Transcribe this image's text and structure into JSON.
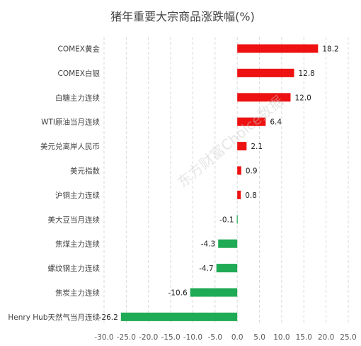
{
  "chart_data": {
    "type": "bar",
    "orientation": "horizontal",
    "title": "猪年重要大宗商品涨跌幅(%)",
    "categories": [
      "COMEX黄金",
      "COMEX白银",
      "白糖主力连续",
      "WTI原油当月连续",
      "美元兑离岸人民币",
      "美元指数",
      "沪铜主力连续",
      "美大豆当月连续",
      "焦煤主力连续",
      "螺纹钢主力连续",
      "焦炭主力连续",
      "Henry Hub天然气当月连续"
    ],
    "values": [
      18.2,
      12.8,
      12.0,
      6.4,
      2.1,
      0.9,
      0.8,
      -0.1,
      -4.3,
      -4.7,
      -10.6,
      -26.2
    ],
    "value_labels": [
      "18.2",
      "12.8",
      "12.0",
      "6.4",
      "2.1",
      "0.9",
      "0.8",
      "-0.1",
      "-4.3",
      "-4.7",
      "-10.6",
      "-26.2"
    ],
    "xlim": [
      -30,
      25
    ],
    "x_ticks": [
      -30,
      -25,
      -20,
      -15,
      -10,
      -5,
      0,
      5,
      10,
      15,
      20,
      25
    ],
    "x_tick_labels": [
      "-30.0",
      "-25.0",
      "-20.0",
      "-15.0",
      "-10.0",
      "-5.0",
      "0.0",
      "5.0",
      "10.0",
      "15.0",
      "20.0",
      "25.0"
    ],
    "grid": "vertical-dashed",
    "legend": "none",
    "xlabel": "",
    "ylabel": "",
    "colors": {
      "positive": "#ee1111",
      "negative": "#1faa55",
      "grid": "#d9d9d9",
      "text": "#404040"
    }
  },
  "watermark": "东方财富Choice数据"
}
